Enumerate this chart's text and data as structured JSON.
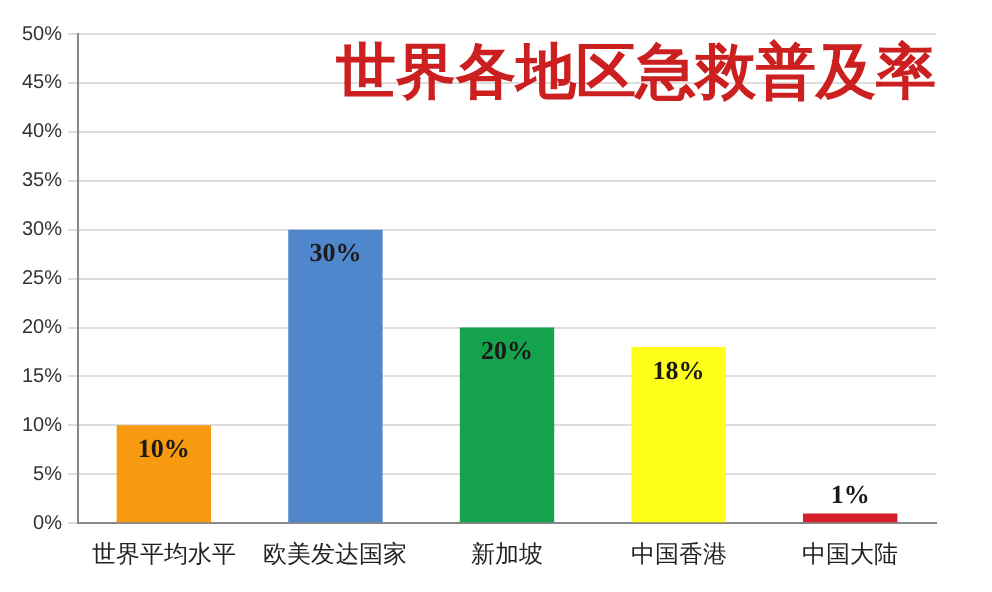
{
  "chart_data": {
    "type": "bar",
    "title": "世界各地区急救普及率",
    "categories": [
      "世界平均水平",
      "欧美发达国家",
      "新加坡",
      "中国香港",
      "中国大陆"
    ],
    "values": [
      10,
      30,
      20,
      18,
      1
    ],
    "colors": [
      "#f79a0f",
      "#4f86cc",
      "#14a34c",
      "#ffff1a",
      "#d4202a"
    ],
    "value_labels": [
      "10%",
      "30%",
      "20%",
      "18%",
      "1%"
    ],
    "ylim": [
      0,
      50
    ],
    "yticks": [
      {
        "value": 0,
        "label": "0%"
      },
      {
        "value": 5,
        "label": "5%"
      },
      {
        "value": 10,
        "label": "10%"
      },
      {
        "value": 15,
        "label": "15%"
      },
      {
        "value": 20,
        "label": "20%"
      },
      {
        "value": 25,
        "label": "25%"
      },
      {
        "value": 30,
        "label": "30%"
      },
      {
        "value": 35,
        "label": "35%"
      },
      {
        "value": 40,
        "label": "40%"
      },
      {
        "value": 45,
        "label": "45%"
      },
      {
        "value": 50,
        "label": "50%"
      }
    ],
    "grid": "y",
    "legend": false
  }
}
